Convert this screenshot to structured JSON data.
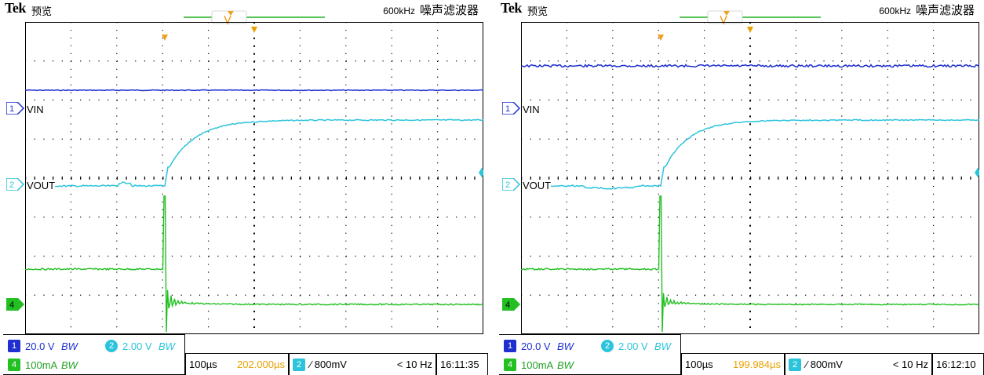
{
  "scopes": [
    {
      "brand": "Tek",
      "mode": "预览",
      "filter_freq": "600kHz",
      "filter_name": "噪声滤波器",
      "channels": {
        "ch1": {
          "num": "1",
          "label": "VIN",
          "scale": "20.0 V",
          "bw": "BW"
        },
        "ch2": {
          "num": "2",
          "label": "VOUT",
          "scale": "2.00 V",
          "bw": "BW"
        },
        "ch4": {
          "num": "4",
          "scale": "100mA",
          "bw": "BW"
        }
      },
      "timebase": "100µs",
      "trigger_pos": "202.000µs",
      "trigger_ch": "2",
      "trigger_level": "∕ 800mV",
      "freq": "< 10 Hz",
      "time": "16:11:35"
    },
    {
      "brand": "Tek",
      "mode": "预览",
      "filter_freq": "600kHz",
      "filter_name": "噪声滤波器",
      "channels": {
        "ch1": {
          "num": "1",
          "label": "VIN",
          "scale": "20.0 V",
          "bw": "BW"
        },
        "ch2": {
          "num": "2",
          "label": "VOUT",
          "scale": "2.00 V",
          "bw": "BW"
        },
        "ch4": {
          "num": "4",
          "scale": "100mA",
          "bw": "BW"
        }
      },
      "timebase": "100µs",
      "trigger_pos": "199.984µs",
      "trigger_ch": "2",
      "trigger_level": "∕ 800mV",
      "freq": "< 10 Hz",
      "time": "16:12:10"
    }
  ],
  "colors": {
    "ch1": "#1f2fd0",
    "ch2": "#2cc4dc",
    "ch4": "#22c022",
    "trigger": "#f0a020",
    "timecursor": "#e8a000"
  }
}
